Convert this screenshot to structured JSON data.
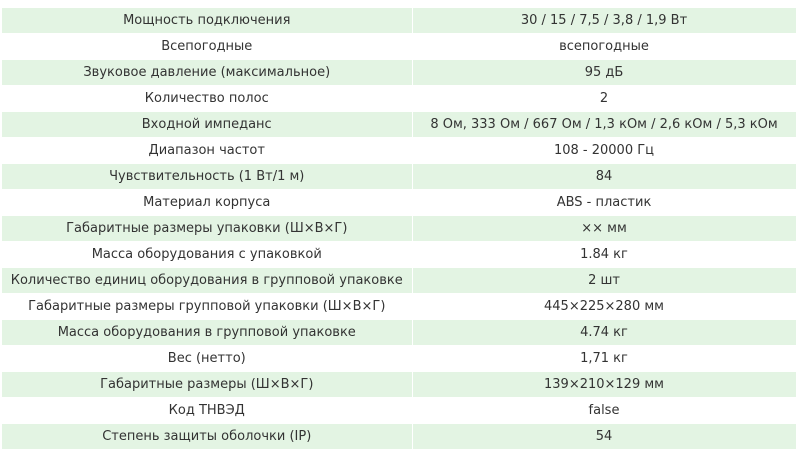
{
  "table": {
    "rows": [
      [
        "Мощность подключения",
        "30 / 15 / 7,5 / 3,8 / 1,9 Вт"
      ],
      [
        "Всепогодные",
        "всепогодные"
      ],
      [
        "Звуковое давление (максимальное)",
        "95 дБ"
      ],
      [
        "Количество полос",
        "2"
      ],
      [
        "Входной импеданс",
        "8 Ом, 333 Ом / 667 Ом / 1,3 кОм / 2,6 кОм / 5,3 кОм"
      ],
      [
        "Диапазон частот",
        "108 - 20000 Гц"
      ],
      [
        "Чувствительность (1 Вт/1 м)",
        "84"
      ],
      [
        "Материал корпуса",
        "ABS - пластик"
      ],
      [
        "Габаритные размеры упаковки (Ш×В×Г)",
        "×× мм"
      ],
      [
        "Масса оборудования с упаковкой",
        "1.84 кг"
      ],
      [
        "Количество единиц оборудования в групповой упаковке",
        "2 шт"
      ],
      [
        "Габаритные размеры групповой упаковки (Ш×В×Г)",
        "445×225×280 мм"
      ],
      [
        "Масса оборудования в групповой упаковке",
        "4.74 кг"
      ],
      [
        "Вес (нетто)",
        "1,71 кг"
      ],
      [
        "Габаритные размеры (Ш×В×Г)",
        "139×210×129 мм"
      ],
      [
        "Код ТНВЭД",
        "false"
      ],
      [
        "Степень защиты оболочки (IP)",
        "54"
      ]
    ]
  }
}
